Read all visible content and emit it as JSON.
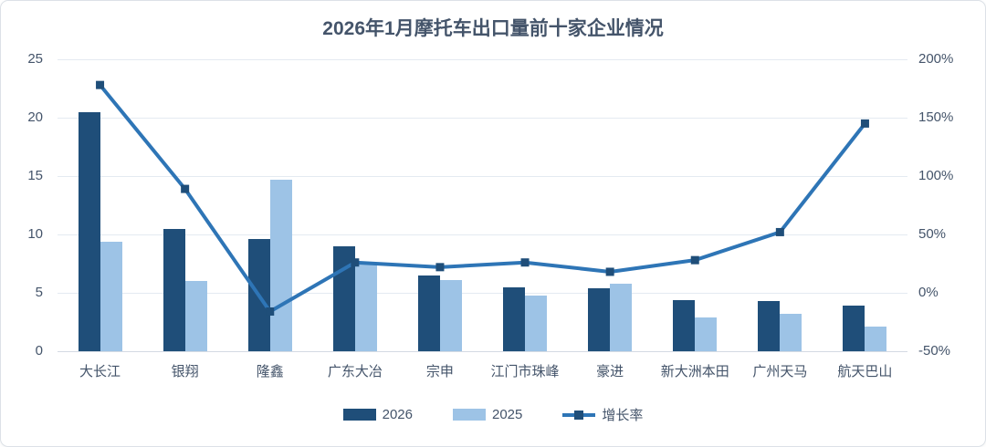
{
  "chart_data": {
    "type": "bar+line",
    "title": "2026年1月摩托车出口量前十家企业情况",
    "categories": [
      "大长江",
      "银翔",
      "隆鑫",
      "广东大冶",
      "宗申",
      "江门市珠峰",
      "豪进",
      "新大洲本田",
      "广州天马",
      "航天巴山"
    ],
    "series": [
      {
        "name": "2026",
        "type": "bar",
        "axis": "left",
        "color": "#1F4E79",
        "values": [
          20.5,
          10.5,
          9.6,
          9.0,
          6.5,
          5.5,
          5.4,
          4.4,
          4.3,
          3.9
        ]
      },
      {
        "name": "2025",
        "type": "bar",
        "axis": "left",
        "color": "#9DC3E6",
        "values": [
          9.4,
          6.0,
          14.7,
          7.5,
          6.1,
          4.8,
          5.8,
          2.9,
          3.2,
          2.1
        ]
      },
      {
        "name": "增长率",
        "type": "line",
        "axis": "right",
        "color": "#2E75B6",
        "marker_color": "#1F4E79",
        "values": [
          178,
          89,
          -16,
          26,
          22,
          26,
          18,
          28,
          52,
          145
        ],
        "unit": "%"
      }
    ],
    "left_axis": {
      "min": 0,
      "max": 25,
      "tick_values": [
        0,
        5,
        10,
        15,
        20,
        25
      ],
      "tick_labels": [
        "0",
        "5",
        "10",
        "15",
        "20",
        "25"
      ]
    },
    "right_axis": {
      "min": -50,
      "max": 200,
      "tick_values": [
        -50,
        0,
        50,
        100,
        150,
        200
      ],
      "tick_labels": [
        "-50%",
        "0%",
        "50%",
        "100%",
        "150%",
        "200%"
      ]
    },
    "grid": true,
    "legend_position": "bottom",
    "legend": [
      "2026",
      "2025",
      "增长率"
    ]
  },
  "colors": {
    "title_text": "#44546A",
    "axis_text": "#44546A",
    "gridline": "#E4EAF1",
    "card_border": "#DCE1E7"
  }
}
